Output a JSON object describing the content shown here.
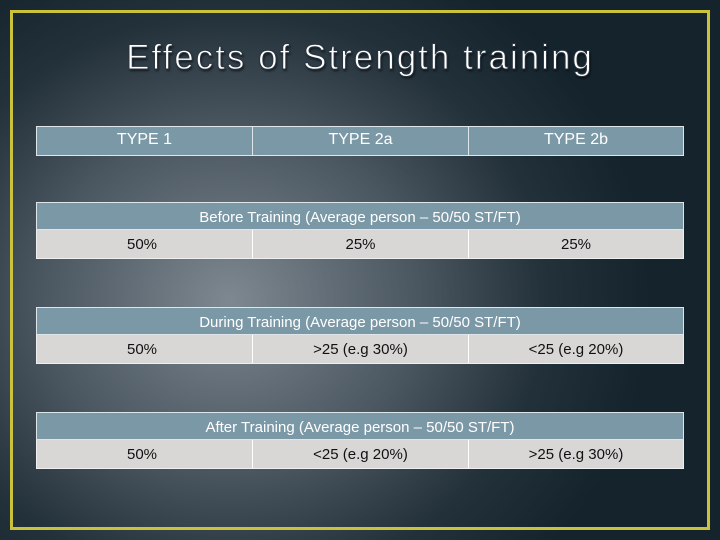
{
  "slide": {
    "title": "Effects of Strength training",
    "columns": [
      "TYPE 1",
      "TYPE 2a",
      "TYPE 2b"
    ],
    "sections": [
      {
        "heading": "Before Training (Average person – 50/50 ST/FT)",
        "values": [
          "50%",
          "25%",
          "25%"
        ]
      },
      {
        "heading": "During Training (Average person – 50/50 ST/FT)",
        "values": [
          "50%",
          ">25 (e.g 30%)",
          "<25 (e.g 20%)"
        ]
      },
      {
        "heading": "After Training (Average person – 50/50 ST/FT)",
        "values": [
          "50%",
          "<25 (e.g 20%)",
          ">25 (e.g 30%)"
        ]
      }
    ]
  },
  "colors": {
    "frame": "#c9c23a",
    "header_fill": "#7b98a7",
    "value_fill": "#d9d6d6"
  }
}
